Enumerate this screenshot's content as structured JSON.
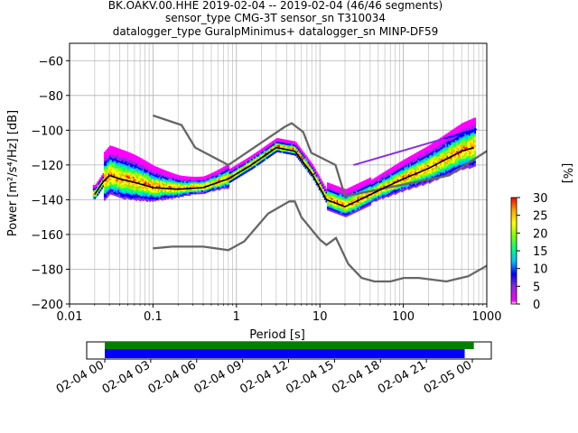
{
  "title": {
    "line1": "BK.OAKV.00.HHE   2019-02-04 -- 2019-02-04  (46/46 segments)",
    "line2": "sensor_type CMG-3T sensor_sn T310034",
    "line3": "datalogger_type GuralpMinimus+ datalogger_sn MINP-DF59"
  },
  "chart_data": [
    {
      "type": "heatmap",
      "xlabel": "Period [s]",
      "ylabel": "Power [m²/s⁴/Hz] [dB]",
      "xscale": "log",
      "xlim": [
        0.01,
        1000
      ],
      "ylim": [
        -200,
        -50
      ],
      "xticks": [
        {
          "v": 0.01,
          "label": "0.01"
        },
        {
          "v": 0.1,
          "label": "0.1"
        },
        {
          "v": 1,
          "label": "1"
        },
        {
          "v": 10,
          "label": "10"
        },
        {
          "v": 100,
          "label": "100"
        },
        {
          "v": 1000,
          "label": "1000"
        }
      ],
      "yticks": [
        {
          "v": -60,
          "label": "−60"
        },
        {
          "v": -80,
          "label": "−80"
        },
        {
          "v": -100,
          "label": "−100"
        },
        {
          "v": -120,
          "label": "−120"
        },
        {
          "v": -140,
          "label": "−140"
        },
        {
          "v": -160,
          "label": "−160"
        },
        {
          "v": -180,
          "label": "−180"
        },
        {
          "v": -200,
          "label": "−200"
        }
      ],
      "grid": true,
      "colorbar": {
        "label": "[%]",
        "min": 0,
        "max": 30,
        "ticks": [
          {
            "v": 0,
            "label": "0"
          },
          {
            "v": 5,
            "label": "5"
          },
          {
            "v": 10,
            "label": "10"
          },
          {
            "v": 15,
            "label": "15"
          },
          {
            "v": 20,
            "label": "20"
          },
          {
            "v": 25,
            "label": "25"
          },
          {
            "v": 30,
            "label": "30"
          }
        ]
      },
      "mode_curve": {
        "color": "#000000",
        "x": [
          0.02,
          0.025,
          0.03,
          0.04,
          0.06,
          0.1,
          0.2,
          0.4,
          0.8,
          1.5,
          3,
          5,
          8,
          12,
          20,
          30,
          60,
          100,
          200,
          500,
          700
        ],
        "y": [
          -137,
          -130,
          -126,
          -128,
          -130,
          -133,
          -134,
          -133,
          -128,
          -120,
          -110,
          -112,
          -125,
          -140,
          -144,
          -140,
          -133,
          -128,
          -122,
          -112,
          -110
        ]
      },
      "nlnm": {
        "color": "#666666",
        "x": [
          0.1,
          0.17,
          0.4,
          0.8,
          1.24,
          2.4,
          4.3,
          5,
          6,
          10,
          12,
          15.6,
          21.9,
          31.6,
          45,
          70,
          101,
          154,
          328,
          600,
          1000
        ],
        "y": [
          -168,
          -167,
          -167,
          -169,
          -164,
          -148,
          -141,
          -141,
          -150,
          -163,
          -166,
          -162,
          -177,
          -185,
          -187,
          -187,
          -185,
          -185,
          -187,
          -184,
          -178
        ]
      },
      "nhnm": {
        "color": "#666666",
        "x": [
          0.1,
          0.22,
          0.32,
          0.8,
          3.8,
          4.6,
          6.3,
          7.9,
          15.4,
          20,
          354.8,
          1000
        ],
        "y": [
          -91.5,
          -97,
          -110,
          -120,
          -98,
          -96,
          -101,
          -113,
          -120,
          -138,
          -126,
          -112
        ]
      },
      "pdf": {
        "cmap": [
          "#ffffff",
          "#ff00ff",
          "#8a2be2",
          "#0000ff",
          "#00bfff",
          "#00ff7f",
          "#7fff00",
          "#ffff00",
          "#ffa500",
          "#ff0000"
        ]
      }
    },
    {
      "type": "timeline",
      "xlabel": "",
      "tick_labels": [
        "02-04 00",
        "02-04 03",
        "02-04 06",
        "02-04 09",
        "02-04 12",
        "02-04 15",
        "02-04 18",
        "02-04 21",
        "02-05 00"
      ],
      "series": [
        {
          "color": "#008000",
          "start_hour": 0,
          "end_hour": 24.1
        },
        {
          "color": "#0000ff",
          "start_hour": 0,
          "end_hour": 23.5
        }
      ]
    }
  ]
}
